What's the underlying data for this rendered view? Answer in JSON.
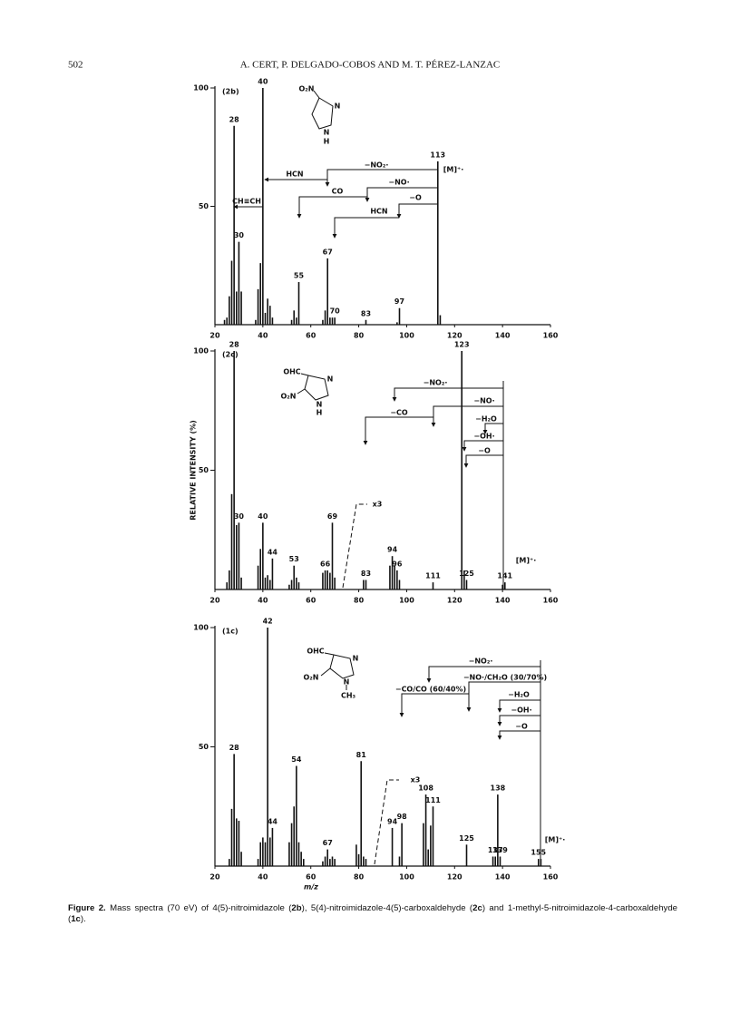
{
  "header": {
    "page_number": "502",
    "authors": "A. CERT, P. DELGADO-COBOS AND M. T. PÉREZ-LANZAC"
  },
  "chart_data": [
    {
      "type": "bar",
      "panel_label": "(2b)",
      "color": "#111111",
      "x": [
        24,
        25,
        26,
        27,
        28,
        29,
        30,
        31,
        37,
        38,
        39,
        40,
        41,
        42,
        43,
        44,
        52,
        53,
        54,
        55,
        65,
        66,
        67,
        68,
        69,
        70,
        83,
        96,
        97,
        113,
        114
      ],
      "values": [
        2,
        3,
        12,
        27,
        84,
        14,
        35,
        14,
        2,
        15,
        26,
        100,
        5,
        11,
        8,
        3,
        2,
        6,
        3,
        18,
        2,
        6,
        28,
        3,
        3,
        3,
        2,
        1,
        7,
        69,
        4
      ],
      "peak_labels": [
        28,
        30,
        40,
        55,
        67,
        70,
        83,
        97,
        113
      ],
      "xlim": [
        20,
        160
      ],
      "ylim": [
        0,
        100
      ],
      "xticks": [
        20,
        40,
        60,
        80,
        100,
        120,
        140,
        160
      ],
      "yticks": [
        50,
        100
      ],
      "annotations": [
        "−NO₂·",
        "[M]⁺·",
        "HCN",
        "−NO·",
        "CO",
        "CH≡CH",
        "−O",
        "HCN"
      ],
      "structure_labels": [
        "O₂N",
        "N",
        "N",
        "H"
      ]
    },
    {
      "type": "bar",
      "panel_label": "(2c)",
      "color": "#111111",
      "y_label": "RELATIVE INTENSITY (%)",
      "x": [
        25,
        26,
        27,
        28,
        29,
        30,
        31,
        38,
        39,
        40,
        41,
        42,
        43,
        44,
        51,
        52,
        53,
        54,
        55,
        65,
        66,
        67,
        68,
        69,
        70,
        82,
        83,
        93,
        94,
        95,
        96,
        97,
        111,
        123,
        124,
        125,
        140,
        141
      ],
      "values": [
        3,
        8,
        40,
        100,
        27,
        28,
        5,
        10,
        17,
        28,
        5,
        6,
        4,
        13,
        2,
        4,
        10,
        5,
        3,
        7,
        8,
        8,
        7,
        28,
        5,
        4,
        4,
        10,
        14,
        10,
        8,
        4,
        3,
        100,
        8,
        4,
        2,
        3
      ],
      "peak_labels": [
        28,
        30,
        40,
        44,
        53,
        66,
        69,
        83,
        94,
        96,
        111,
        123,
        125,
        141
      ],
      "xlim": [
        20,
        160
      ],
      "ylim": [
        0,
        100
      ],
      "xticks": [
        20,
        40,
        60,
        80,
        100,
        120,
        140,
        160
      ],
      "yticks": [
        50,
        100
      ],
      "annotations": [
        "−NO₂·",
        "−NO·",
        "−CO",
        "−H₂O",
        "−OH·",
        "−O",
        "x3",
        "[M]⁺·"
      ],
      "structure_labels": [
        "OHC",
        "N",
        "O₂N",
        "N",
        "H"
      ]
    },
    {
      "type": "bar",
      "panel_label": "(1c)",
      "color": "#111111",
      "x_label": "m/z",
      "x": [
        26,
        27,
        28,
        29,
        30,
        31,
        38,
        39,
        40,
        41,
        42,
        43,
        44,
        51,
        52,
        53,
        54,
        55,
        56,
        57,
        65,
        66,
        67,
        68,
        69,
        70,
        79,
        80,
        81,
        82,
        83,
        94,
        97,
        98,
        107,
        108,
        109,
        110,
        111,
        125,
        136,
        137,
        138,
        139,
        155,
        156
      ],
      "values": [
        3,
        24,
        47,
        20,
        19,
        6,
        3,
        10,
        12,
        10,
        100,
        12,
        16,
        10,
        18,
        25,
        42,
        10,
        6,
        3,
        2,
        4,
        7,
        3,
        4,
        3,
        9,
        5,
        44,
        4,
        3,
        16,
        4,
        18,
        18,
        30,
        7,
        17,
        25,
        9,
        4,
        4,
        30,
        4,
        3,
        3
      ],
      "peak_labels": [
        28,
        42,
        44,
        54,
        67,
        81,
        94,
        98,
        108,
        111,
        125,
        137,
        138,
        139,
        155
      ],
      "xlim": [
        20,
        160
      ],
      "ylim": [
        0,
        100
      ],
      "xticks": [
        20,
        40,
        60,
        80,
        100,
        120,
        140,
        160
      ],
      "yticks": [
        50,
        100
      ],
      "annotations": [
        "−NO₂·",
        "−NO·/CH₂O (30/70%)",
        "−CO/CO (60/40%)",
        "−H₂O",
        "−OH·",
        "−O",
        "x3",
        "[M]⁺·"
      ],
      "structure_labels": [
        "OHC",
        "N",
        "O₂N",
        "N",
        "CH₃"
      ]
    }
  ],
  "caption": {
    "parts": [
      "Figure 2.",
      " Mass spectra (70 eV) of 4(5)-nitroimidazole (",
      "2b",
      "), 5(4)-nitroimidazole-4(5)-carboxaldehyde (",
      "2c",
      ") and 1-methyl-5-nitroimidazole-4-carboxaldehyde (",
      "1c",
      ")."
    ]
  }
}
